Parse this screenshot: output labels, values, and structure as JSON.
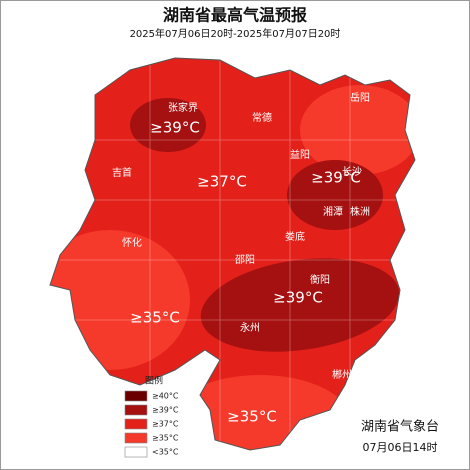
{
  "header": {
    "title": "湖南省最高气温预报",
    "subtitle": "2025年07月06日20时-2025年07月07日20时"
  },
  "cities": [
    "张家界",
    "常德",
    "岳阳",
    "吉首",
    "益阳",
    "长沙",
    "湘潭",
    "株洲",
    "怀化",
    "娄底",
    "邵阳",
    "衡阳",
    "永州",
    "郴州"
  ],
  "zone_labels": [
    "≥39°C",
    "≥37°C",
    "≥39°C",
    "≥39°C",
    "≥35°C",
    "≥35°C"
  ],
  "legend": {
    "title": "图例",
    "items": [
      "≥40°C",
      "≥39°C",
      "≥37°C",
      "≥35°C",
      "<35°C"
    ]
  },
  "footer": {
    "agency": "湖南省气象台",
    "issued": "07月06日14时"
  }
}
